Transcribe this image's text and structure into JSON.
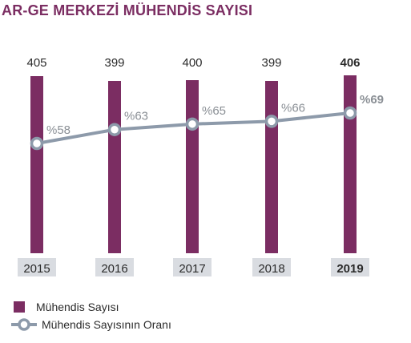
{
  "title": "AR-GE MERKEZİ MÜHENDİS SAYISI",
  "colors": {
    "bar": "#7b2d62",
    "line": "#8d9aaa",
    "category_box": "#d9dce1",
    "title": "#7b2d62",
    "text": "#2b2b2b",
    "percent_text": "#8a8f95"
  },
  "legend": {
    "bar_label": "Mühendis Sayısı",
    "line_label": "Mühendis Sayısının Oranı"
  },
  "chart_data": {
    "type": "bar",
    "categories": [
      "2015",
      "2016",
      "2017",
      "2018",
      "2019"
    ],
    "series": [
      {
        "name": "Mühendis Sayısı",
        "type": "bar",
        "values": [
          405,
          399,
          400,
          399,
          406
        ],
        "labels": [
          "405",
          "399",
          "400",
          "399",
          "406"
        ]
      },
      {
        "name": "Mühendis Sayısının Oranı",
        "type": "line",
        "values": [
          58,
          63,
          65,
          66,
          69
        ],
        "labels": [
          "%58",
          "%63",
          "%65",
          "%66",
          "%69"
        ]
      }
    ],
    "highlighted_category": "2019"
  }
}
